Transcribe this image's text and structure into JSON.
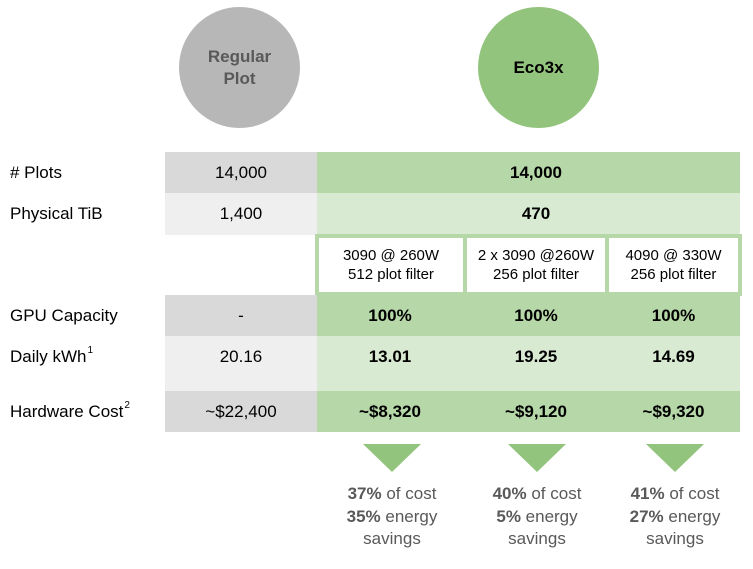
{
  "headers": {
    "regular": "Regular Plot",
    "eco": "Eco3x"
  },
  "rows": {
    "plots": {
      "label": "# Plots",
      "regular": "14,000",
      "eco": "14,000"
    },
    "tib": {
      "label": "Physical TiB",
      "regular": "1,400",
      "eco": "470"
    },
    "gpu_configs": [
      {
        "line1": "3090 @ 260W",
        "line2": "512 plot filter"
      },
      {
        "line1": "2 x 3090 @260W",
        "line2": "256 plot filter"
      },
      {
        "line1": "4090 @ 330W",
        "line2": "256 plot filter"
      }
    ],
    "gpu_capacity": {
      "label": "GPU Capacity",
      "regular": "-",
      "eco": [
        "100%",
        "100%",
        "100%"
      ]
    },
    "daily_kwh": {
      "label": "Daily kWh",
      "footnote": "1",
      "regular": "20.16",
      "eco": [
        "13.01",
        "19.25",
        "14.69"
      ]
    },
    "hardware_cost": {
      "label": "Hardware Cost",
      "footnote": "2",
      "regular": "~$22,400",
      "eco": [
        "~$8,320",
        "~$9,120",
        "~$9,320"
      ]
    }
  },
  "savings": [
    {
      "cost_pct": "37%",
      "cost_text": " of cost",
      "energy_pct": "35%",
      "energy_text": " energy",
      "tail": "savings"
    },
    {
      "cost_pct": "40%",
      "cost_text": " of cost",
      "energy_pct": "5%",
      "energy_text": " energy",
      "tail": "savings"
    },
    {
      "cost_pct": "41%",
      "cost_text": " of cost",
      "energy_pct": "27%",
      "energy_text": " energy",
      "tail": "savings"
    }
  ],
  "colors": {
    "gray_dark": "#d9d9d9",
    "gray_light": "#efefef",
    "green_dark": "#b6d7a8",
    "green_light": "#d9ead3",
    "green_accent": "#93c47d"
  }
}
